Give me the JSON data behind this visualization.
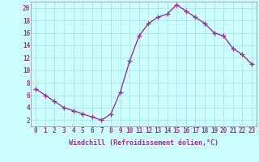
{
  "x": [
    0,
    1,
    2,
    3,
    4,
    5,
    6,
    7,
    8,
    9,
    10,
    11,
    12,
    13,
    14,
    15,
    16,
    17,
    18,
    19,
    20,
    21,
    22,
    23
  ],
  "y": [
    7,
    6,
    5,
    4,
    3.5,
    3,
    2.5,
    2,
    3,
    6.5,
    11.5,
    15.5,
    17.5,
    18.5,
    19,
    20.5,
    19.5,
    18.5,
    17.5,
    16,
    15.5,
    13.5,
    12.5,
    11
  ],
  "line_color": "#993399",
  "marker": "+",
  "marker_size": 4,
  "bg_color": "#ccffff",
  "grid_color": "#aadddd",
  "xlabel": "Windchill (Refroidissement éolien,°C)",
  "xlim": [
    -0.5,
    23.5
  ],
  "ylim": [
    1,
    21
  ],
  "yticks": [
    2,
    4,
    6,
    8,
    10,
    12,
    14,
    16,
    18,
    20
  ],
  "xticks": [
    0,
    1,
    2,
    3,
    4,
    5,
    6,
    7,
    8,
    9,
    10,
    11,
    12,
    13,
    14,
    15,
    16,
    17,
    18,
    19,
    20,
    21,
    22,
    23
  ],
  "xlabel_fontsize": 6,
  "tick_fontsize": 5.5,
  "line_width": 1.0,
  "tick_color": "#993399"
}
